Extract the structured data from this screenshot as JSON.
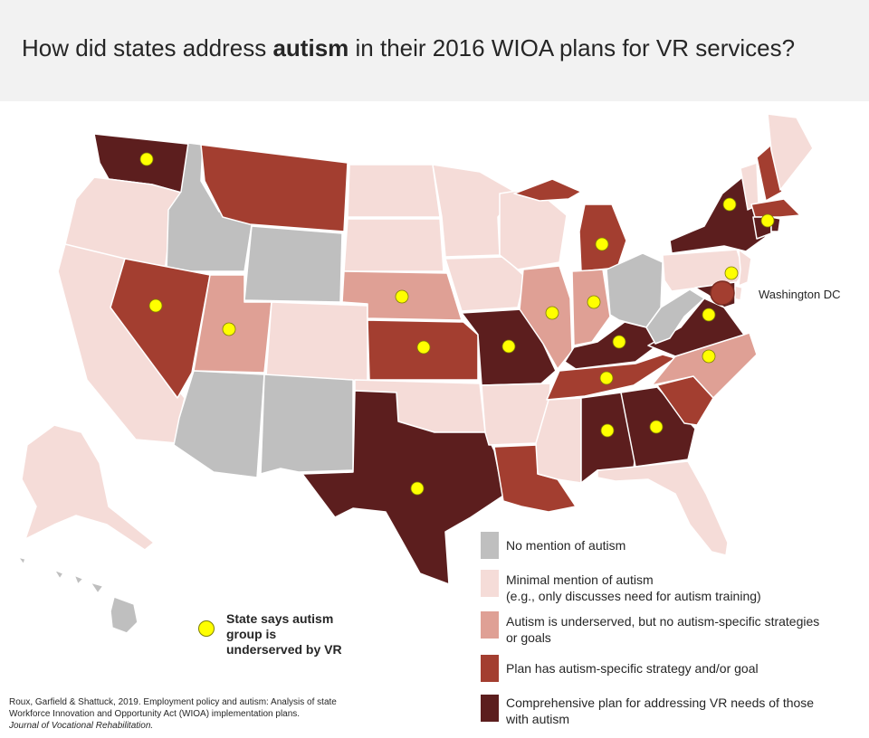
{
  "title": {
    "prefix": "How did states address ",
    "emphasis": "autism",
    "suffix": " in their 2016 WIOA plans for VR services?"
  },
  "colors": {
    "none": "#bfbfbf",
    "minimal": "#f5dcd8",
    "underserved": "#dfa095",
    "strategy": "#a33e30",
    "comprehensive": "#5c1e1e",
    "dot": "#ffff00"
  },
  "legend": [
    {
      "key": "none",
      "label": "No mention of autism",
      "sublabel": ""
    },
    {
      "key": "minimal",
      "label": "Minimal mention of autism",
      "sublabel": "(e.g., only discusses need for autism training)"
    },
    {
      "key": "underserved",
      "label": "Autism is underserved, but no autism-specific strategies",
      "sublabel": "or goals"
    },
    {
      "key": "strategy",
      "label": "Plan has autism-specific strategy and/or goal",
      "sublabel": ""
    },
    {
      "key": "comprehensive",
      "label": "Comprehensive plan for addressing VR needs of those",
      "sublabel": "with autism"
    }
  ],
  "dot_legend": {
    "label": "State says autism group is underserved by VR"
  },
  "dc_label": "Washington DC",
  "citation": {
    "text": "Roux, Garfield & Shattuck, 2019. Employment  policy and autism:  Analysis of state Workforce Innovation and Opportunity Act (WIOA) implementation  plans.",
    "journal": "Journal of Vocational Rehabilitation."
  },
  "states": [
    {
      "id": "WA",
      "category": "comprehensive",
      "dot": true
    },
    {
      "id": "OR",
      "category": "minimal",
      "dot": false
    },
    {
      "id": "CA",
      "category": "minimal",
      "dot": false
    },
    {
      "id": "ID",
      "category": "none",
      "dot": false
    },
    {
      "id": "NV",
      "category": "strategy",
      "dot": true
    },
    {
      "id": "MT",
      "category": "strategy",
      "dot": false
    },
    {
      "id": "WY",
      "category": "none",
      "dot": false
    },
    {
      "id": "UT",
      "category": "underserved",
      "dot": true
    },
    {
      "id": "AZ",
      "category": "none",
      "dot": false
    },
    {
      "id": "CO",
      "category": "minimal",
      "dot": false
    },
    {
      "id": "NM",
      "category": "none",
      "dot": false
    },
    {
      "id": "ND",
      "category": "minimal",
      "dot": false
    },
    {
      "id": "SD",
      "category": "minimal",
      "dot": false
    },
    {
      "id": "NE",
      "category": "underserved",
      "dot": true
    },
    {
      "id": "KS",
      "category": "strategy",
      "dot": true
    },
    {
      "id": "OK",
      "category": "minimal",
      "dot": false
    },
    {
      "id": "TX",
      "category": "comprehensive",
      "dot": true
    },
    {
      "id": "MN",
      "category": "minimal",
      "dot": false
    },
    {
      "id": "IA",
      "category": "minimal",
      "dot": false
    },
    {
      "id": "MO",
      "category": "comprehensive",
      "dot": true
    },
    {
      "id": "AR",
      "category": "minimal",
      "dot": false
    },
    {
      "id": "LA",
      "category": "strategy",
      "dot": false
    },
    {
      "id": "WI",
      "category": "minimal",
      "dot": false
    },
    {
      "id": "IL",
      "category": "underserved",
      "dot": true
    },
    {
      "id": "MI",
      "category": "strategy",
      "dot": true
    },
    {
      "id": "IN",
      "category": "underserved",
      "dot": true
    },
    {
      "id": "OH",
      "category": "none",
      "dot": false
    },
    {
      "id": "KY",
      "category": "comprehensive",
      "dot": true
    },
    {
      "id": "TN",
      "category": "strategy",
      "dot": true
    },
    {
      "id": "MS",
      "category": "minimal",
      "dot": false
    },
    {
      "id": "AL",
      "category": "comprehensive",
      "dot": true
    },
    {
      "id": "GA",
      "category": "comprehensive",
      "dot": true
    },
    {
      "id": "FL",
      "category": "minimal",
      "dot": false
    },
    {
      "id": "SC",
      "category": "strategy",
      "dot": false
    },
    {
      "id": "NC",
      "category": "underserved",
      "dot": true
    },
    {
      "id": "VA",
      "category": "comprehensive",
      "dot": true
    },
    {
      "id": "WV",
      "category": "none",
      "dot": false
    },
    {
      "id": "PA",
      "category": "minimal",
      "dot": false
    },
    {
      "id": "NY",
      "category": "comprehensive",
      "dot": true
    },
    {
      "id": "NJ",
      "category": "minimal",
      "dot": false
    },
    {
      "id": "DE",
      "category": "minimal",
      "dot": false
    },
    {
      "id": "MD",
      "category": "comprehensive",
      "dot": true
    },
    {
      "id": "DC",
      "category": "strategy",
      "dot": false
    },
    {
      "id": "CT",
      "category": "comprehensive",
      "dot": false
    },
    {
      "id": "RI",
      "category": "comprehensive",
      "dot": true
    },
    {
      "id": "MA",
      "category": "strategy",
      "dot": false
    },
    {
      "id": "VT",
      "category": "minimal",
      "dot": false
    },
    {
      "id": "NH",
      "category": "strategy",
      "dot": false
    },
    {
      "id": "ME",
      "category": "minimal",
      "dot": false
    },
    {
      "id": "AK",
      "category": "minimal",
      "dot": false
    },
    {
      "id": "HI",
      "category": "none",
      "dot": false
    }
  ]
}
